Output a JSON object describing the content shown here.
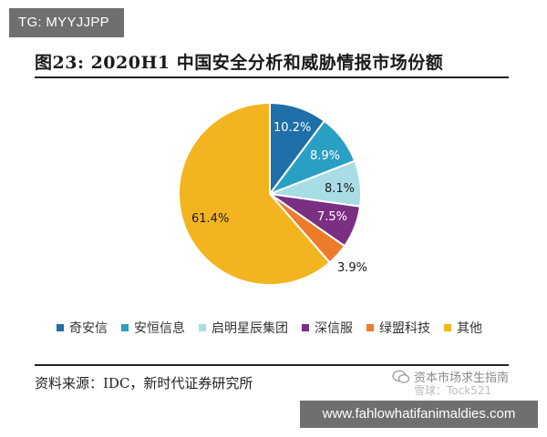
{
  "badge": {
    "text": "TG: MYYJJPP"
  },
  "chart_data": {
    "type": "pie",
    "title": "图23:   2020H1 中国安全分析和威胁情报市场份额",
    "slices": [
      {
        "name": "奇安信",
        "value": 10.2,
        "label": "10.2%",
        "color": "#1f6fa8"
      },
      {
        "name": "安恒信息",
        "value": 8.9,
        "label": "8.9%",
        "color": "#2a9fc4"
      },
      {
        "name": "启明星辰集团",
        "value": 8.1,
        "label": "8.1%",
        "color": "#a9dde6"
      },
      {
        "name": "深信服",
        "value": 7.5,
        "label": "7.5%",
        "color": "#7a2f83"
      },
      {
        "name": "绿盟科技",
        "value": 3.9,
        "label": "3.9%",
        "color": "#ec7b2a"
      },
      {
        "name": "其他",
        "value": 61.4,
        "label": "61.4%",
        "color": "#f2b51f"
      }
    ],
    "legend_position": "bottom"
  },
  "source": {
    "text": "资料来源：IDC，新时代证券研究所"
  },
  "watermark": {
    "line1": "资本市场求生指南",
    "line2": "雪球：Tock521"
  },
  "url_banner": {
    "text": "www.fahlowhatifanimaldies.com"
  }
}
